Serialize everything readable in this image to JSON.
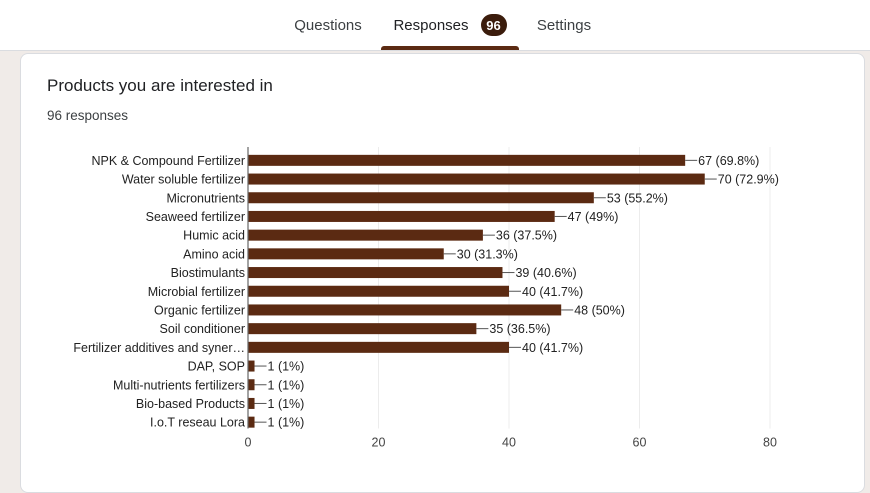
{
  "tabs": [
    {
      "label": "Questions"
    },
    {
      "label": "Responses",
      "badge": "96"
    },
    {
      "label": "Settings"
    }
  ],
  "card": {
    "title": "Products you are interested in",
    "subtitle": "96 responses"
  },
  "colors": {
    "bar": "#5b2a12",
    "accent": "#3b1c0c"
  },
  "chart_data": {
    "type": "bar",
    "orientation": "horizontal",
    "categories": [
      "NPK & Compound Fertilizer",
      "Water soluble fertilizer",
      "Micronutrients",
      "Seaweed fertilizer",
      "Humic acid",
      "Amino acid",
      "Biostimulants",
      "Microbial fertilizer",
      "Organic fertilizer",
      "Soil conditioner",
      "Fertilizer additives and syner…",
      "DAP, SOP",
      "Multi-nutrients fertilizers",
      "Bio-based Products",
      "I.o.T reseau Lora"
    ],
    "values": [
      67,
      70,
      53,
      47,
      36,
      30,
      39,
      40,
      48,
      35,
      40,
      1,
      1,
      1,
      1
    ],
    "value_labels": [
      "67 (69.8%)",
      "70 (72.9%)",
      "53 (55.2%)",
      "47 (49%)",
      "36 (37.5%)",
      "30 (31.3%)",
      "39 (40.6%)",
      "40 (41.7%)",
      "48 (50%)",
      "35 (36.5%)",
      "40 (41.7%)",
      "1 (1%)",
      "1 (1%)",
      "1 (1%)",
      "1 (1%)"
    ],
    "xlim": [
      0,
      80
    ],
    "xticks": [
      0,
      20,
      40,
      60,
      80
    ],
    "grid": true
  }
}
